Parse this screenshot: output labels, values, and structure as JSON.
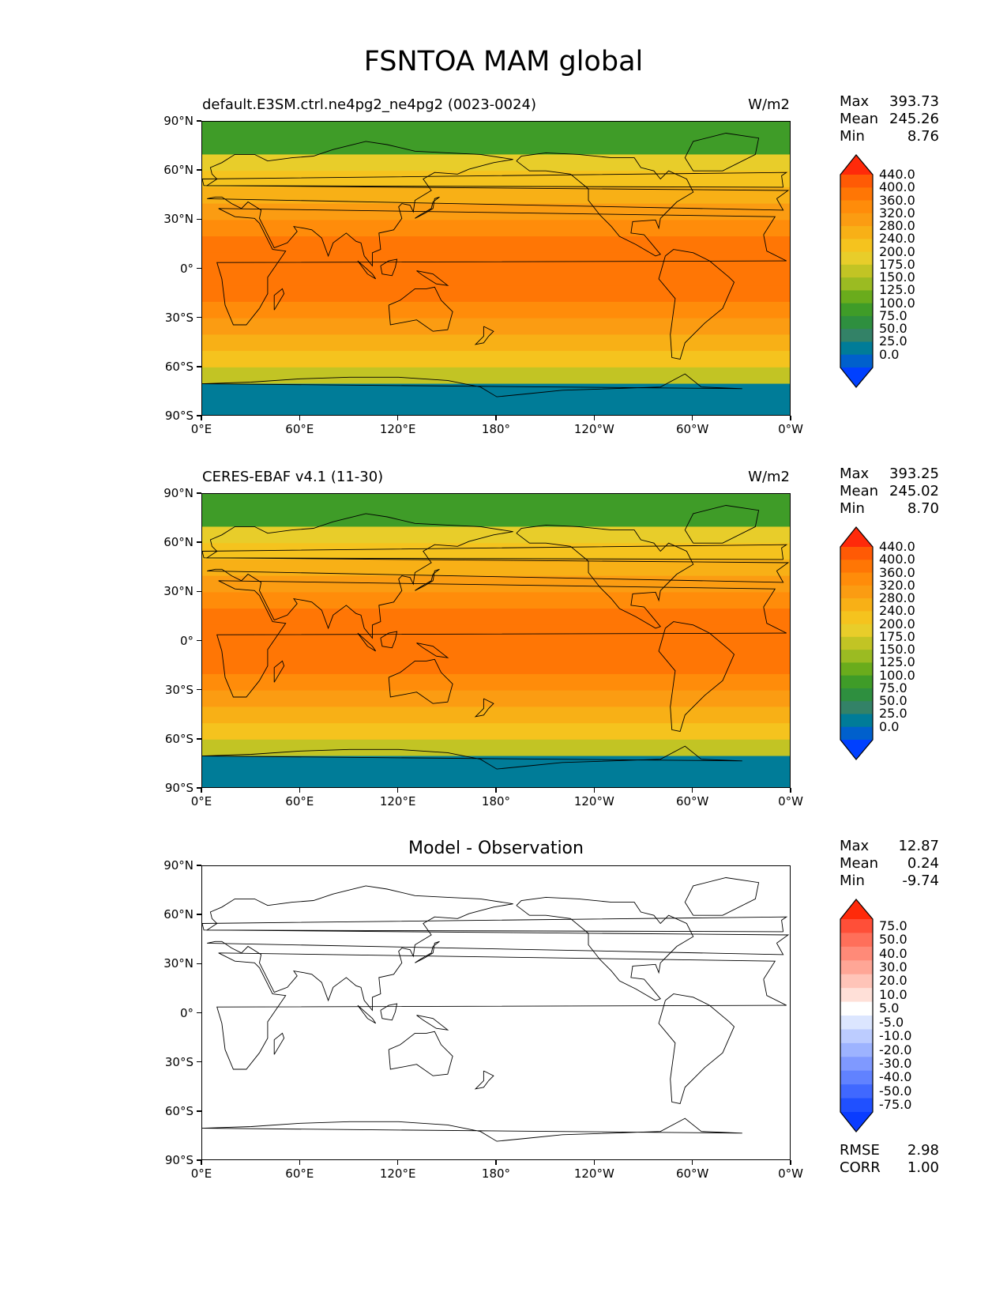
{
  "title": "FSNTOA MAM global",
  "panels": [
    {
      "id": "model",
      "title": "default.E3SM.ctrl.ne4pg2_ne4pg2 (0023-0024)",
      "units": "W/m2",
      "stats": {
        "max_label": "Max",
        "max": "393.73",
        "mean_label": "Mean",
        "mean": "245.26",
        "min_label": "Min",
        "min": "8.76"
      }
    },
    {
      "id": "obs",
      "title": "CERES-EBAF v4.1 (11-30)",
      "units": "W/m2",
      "stats": {
        "max_label": "Max",
        "max": "393.25",
        "mean_label": "Mean",
        "mean": "245.02",
        "min_label": "Min",
        "min": "8.70"
      }
    },
    {
      "id": "diff",
      "title": "Model - Observation",
      "units": "",
      "stats": {
        "max_label": "Max",
        "max": "12.87",
        "mean_label": "Mean",
        "mean": "0.24",
        "min_label": "Min",
        "min": "-9.74"
      }
    }
  ],
  "axes": {
    "lat_ticks": [
      "90°N",
      "60°N",
      "30°N",
      "0°",
      "30°S",
      "60°S",
      "90°S"
    ],
    "lon_ticks": [
      "0°E",
      "60°E",
      "120°E",
      "180°",
      "120°W",
      "60°W",
      "0°W"
    ]
  },
  "colorbars": {
    "field": {
      "labels": [
        "440.0",
        "400.0",
        "360.0",
        "320.0",
        "280.0",
        "240.0",
        "200.0",
        "175.0",
        "150.0",
        "125.0",
        "100.0",
        "75.0",
        "50.0",
        "25.0",
        "0.0"
      ],
      "colors": [
        "#ff2a0a",
        "#ff5a05",
        "#ff7605",
        "#ff8c0a",
        "#fb9c12",
        "#f8b016",
        "#f5c31e",
        "#e8cd2a",
        "#c2c424",
        "#9bbb22",
        "#6aac1c",
        "#3f9c28",
        "#2e8f3f",
        "#338267",
        "#007c98",
        "#0060cc",
        "#0040ff"
      ]
    },
    "diff": {
      "labels": [
        "75.0",
        "50.0",
        "40.0",
        "30.0",
        "20.0",
        "10.0",
        "5.0",
        "-5.0",
        "-10.0",
        "-20.0",
        "-30.0",
        "-40.0",
        "-50.0",
        "-75.0"
      ],
      "colors": [
        "#ff2a0a",
        "#ff4f38",
        "#ff6f5a",
        "#ff8a78",
        "#ffa696",
        "#ffc4b8",
        "#ffe0d8",
        "#ffffff",
        "#dce6ff",
        "#bcccff",
        "#9db3ff",
        "#7f99ff",
        "#6182ff",
        "#4068ff",
        "#2050ff",
        "#0a3cff"
      ]
    }
  },
  "diff_footer": {
    "rmse_label": "RMSE",
    "rmse": "2.98",
    "corr_label": "CORR",
    "corr": "1.00"
  },
  "colors": {
    "land_outline": "#000000"
  }
}
